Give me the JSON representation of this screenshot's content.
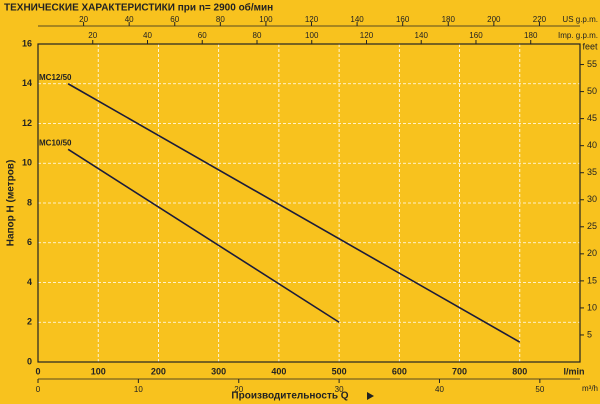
{
  "chart_data": {
    "type": "line",
    "title": "ТЕХНИЧЕСКИЕ ХАРАКТЕРИСТИКИ при n= 2900 об/мин",
    "xlabel": "Производительность Q",
    "xunit": "l/min",
    "ylabel": "Напор H (метров)",
    "y2unit": "feet",
    "xlim": [
      0,
      900
    ],
    "xticks": [
      0,
      100,
      200,
      300,
      400,
      500,
      600,
      700,
      800
    ],
    "ylim": [
      0,
      16
    ],
    "yticks": [
      0,
      2,
      4,
      6,
      8,
      10,
      12,
      14,
      16
    ],
    "y2lim": [
      0,
      58.8
    ],
    "y2ticks": [
      5,
      10,
      15,
      20,
      25,
      30,
      35,
      40,
      45,
      50,
      55
    ],
    "grid": true,
    "extra_axes": [
      {
        "position": "top",
        "label": "US g.p.m.",
        "lim": [
          0,
          237.8
        ],
        "ticks": [
          20,
          40,
          60,
          80,
          100,
          120,
          140,
          160,
          180,
          200,
          220
        ]
      },
      {
        "position": "top",
        "label": "Imp. g.p.m.",
        "lim": [
          0,
          198
        ],
        "ticks": [
          20,
          40,
          60,
          80,
          100,
          120,
          140,
          160,
          180
        ]
      },
      {
        "position": "bottom",
        "label": "m³/h",
        "lim": [
          0,
          54
        ],
        "ticks": [
          0,
          10,
          20,
          30,
          40,
          50
        ]
      }
    ],
    "series": [
      {
        "name": "MC12/50",
        "color": "#1c1c3a",
        "x": [
          50,
          800
        ],
        "values": [
          14,
          1
        ]
      },
      {
        "name": "MC10/50",
        "color": "#1c1c3a",
        "x": [
          50,
          500
        ],
        "values": [
          10.7,
          2
        ]
      }
    ]
  }
}
